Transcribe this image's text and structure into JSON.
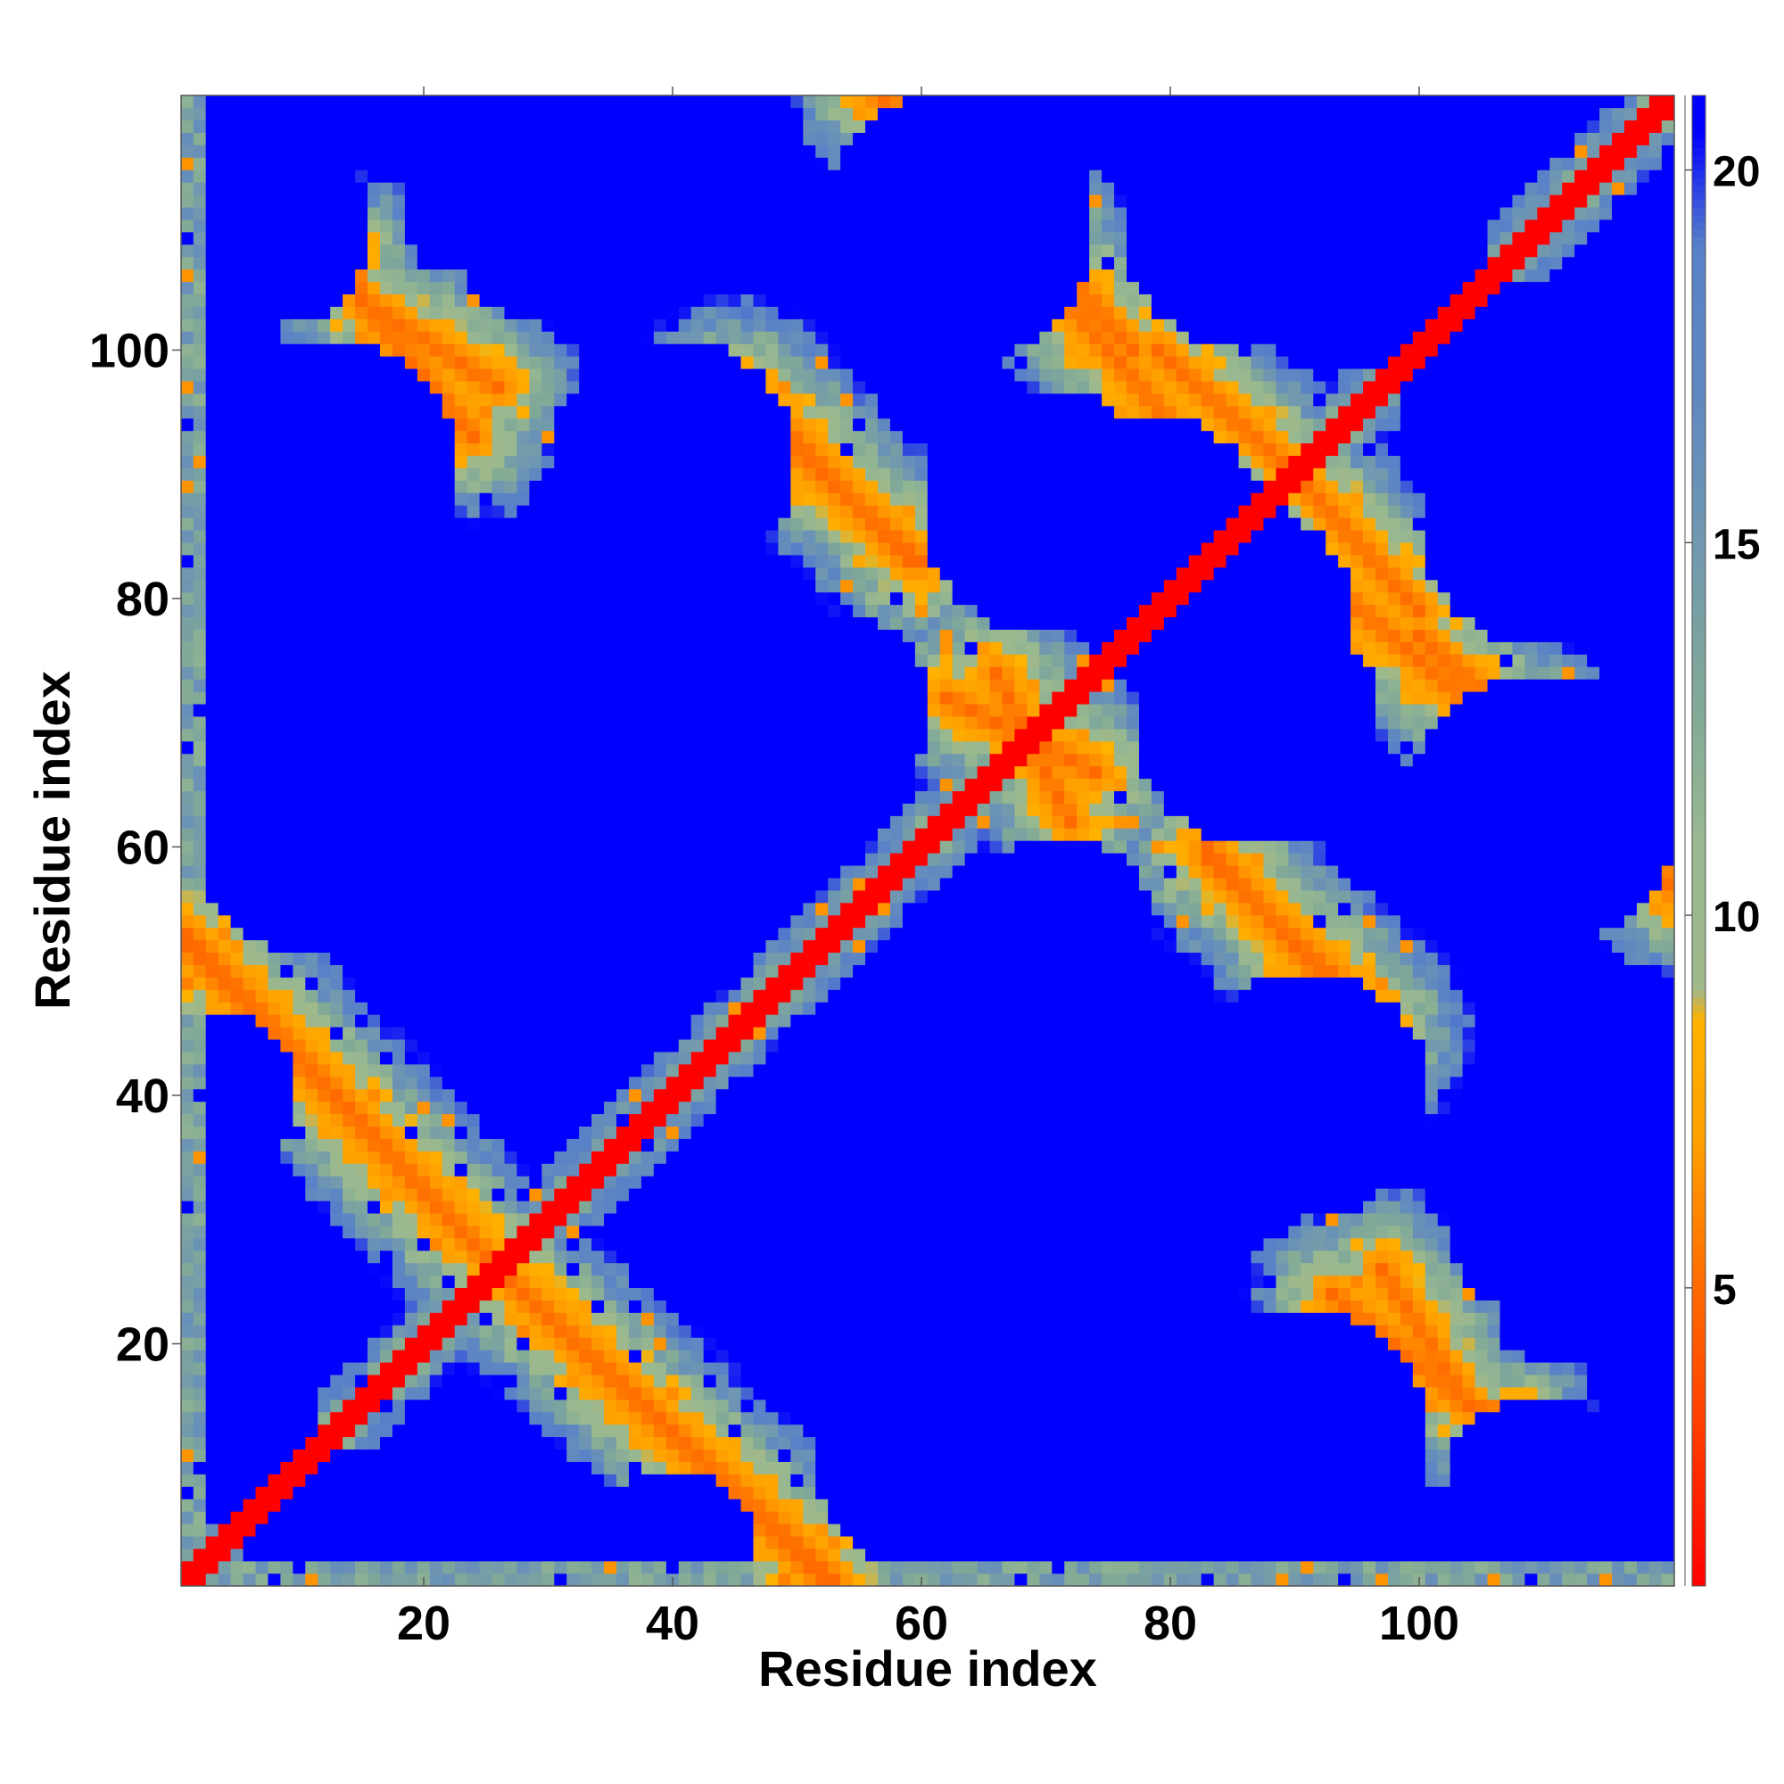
{
  "chart_data": {
    "type": "heatmap",
    "title": "",
    "xlabel": "Residue index",
    "ylabel": "Residue index",
    "n_residues": 120,
    "xlim": [
      1,
      121
    ],
    "ylim": [
      1,
      121
    ],
    "xticks": [
      20,
      40,
      60,
      80,
      100
    ],
    "yticks": [
      20,
      40,
      60,
      80,
      100
    ],
    "colorbar": {
      "ticks": [
        5,
        10,
        15,
        20
      ],
      "range": [
        1,
        21
      ],
      "stops": [
        {
          "value": 1,
          "color": "#ff0000"
        },
        {
          "value": 3,
          "color": "#ff3a00"
        },
        {
          "value": 5,
          "color": "#ff6a00"
        },
        {
          "value": 7,
          "color": "#ffa000"
        },
        {
          "value": 8.6,
          "color": "#ffb200"
        },
        {
          "value": 9,
          "color": "#a0b88a"
        },
        {
          "value": 11,
          "color": "#98b890"
        },
        {
          "value": 13,
          "color": "#80a898"
        },
        {
          "value": 15,
          "color": "#7098b0"
        },
        {
          "value": 17,
          "color": "#6088c0"
        },
        {
          "value": 19,
          "color": "#5880c8"
        },
        {
          "value": 20.5,
          "color": "#0000ff"
        }
      ]
    },
    "matrix_description": "pairwise residue distance map, symmetric about the main diagonal",
    "diagonal_distance": 1,
    "contact_bands": [
      {
        "start": [
          1,
          53
        ],
        "end": [
          26,
          26
        ],
        "width": 1.6
      },
      {
        "start": [
          26,
          26
        ],
        "end": [
          52,
          1
        ],
        "width": 1.6
      },
      {
        "start": [
          24,
          93
        ],
        "end": [
          15,
          104
        ],
        "width": 1.4
      },
      {
        "start": [
          46,
          97
        ],
        "end": [
          59,
          83
        ],
        "width": 1.6
      },
      {
        "start": [
          56,
          121
        ],
        "end": [
          70,
          109
        ],
        "width": 1.4
      },
      {
        "start": [
          70,
          108
        ],
        "end": [
          77,
          100
        ],
        "width": 1.4
      },
      {
        "start": [
          79,
          100
        ],
        "end": [
          90,
          90
        ],
        "width": 1.4
      },
      {
        "start": [
          62,
          72
        ],
        "end": [
          74,
          66
        ],
        "width": 1.6
      },
      {
        "start": [
          83,
          60
        ],
        "end": [
          97,
          44
        ],
        "width": 1.6
      },
      {
        "start": [
          93,
          81
        ],
        "end": [
          106,
          70
        ],
        "width": 1.6
      },
      {
        "start": [
          106,
          70
        ],
        "end": [
          119,
          58
        ],
        "width": 1.6
      },
      {
        "start": [
          97,
          26
        ],
        "end": [
          104,
          15
        ],
        "width": 1.4
      },
      {
        "start": [
          104,
          15
        ],
        "end": [
          108,
          14
        ],
        "width": 1.0
      }
    ],
    "blue_regions": [
      {
        "center": [
          8,
          110
        ],
        "radius": 8
      },
      {
        "center": [
          30,
          110
        ],
        "radius": 8
      },
      {
        "center": [
          63,
          110
        ],
        "radius": 11
      },
      {
        "center": [
          96,
          108
        ],
        "radius": 10
      },
      {
        "center": [
          9,
          84
        ],
        "radius": 6
      },
      {
        "center": [
          38,
          85
        ],
        "radius": 10
      },
      {
        "center": [
          78,
          85
        ],
        "radius": 10
      },
      {
        "center": [
          110,
          86
        ],
        "radius": 10
      },
      {
        "center": [
          18,
          63
        ],
        "radius": 9
      },
      {
        "center": [
          40,
          62
        ],
        "radius": 10
      },
      {
        "center": [
          53,
          71
        ],
        "radius": 8
      },
      {
        "center": [
          87,
          70
        ],
        "radius": 10
      },
      {
        "center": [
          110,
          62
        ],
        "radius": 9
      },
      {
        "center": [
          3,
          40
        ],
        "radius": 7
      },
      {
        "center": [
          62,
          42
        ],
        "radius": 8
      },
      {
        "center": [
          91,
          40
        ],
        "radius": 10
      },
      {
        "center": [
          114,
          35
        ],
        "radius": 8
      },
      {
        "center": [
          5,
          12
        ],
        "radius": 7
      },
      {
        "center": [
          62,
          12
        ],
        "radius": 11
      },
      {
        "center": [
          90,
          12
        ],
        "radius": 11
      },
      {
        "center": [
          112,
          24
        ],
        "radius": 6
      }
    ]
  }
}
